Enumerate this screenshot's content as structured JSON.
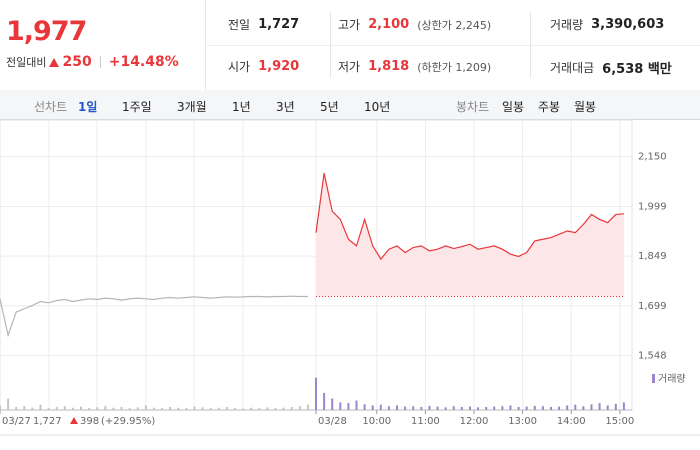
{
  "header": {
    "price": "1,977",
    "change_label": "전일대비",
    "change": "250",
    "change_pct": "+14.48%"
  },
  "summary": [
    {
      "label": "전일",
      "value": "1,727"
    },
    {
      "label": "고가",
      "value": "2,100",
      "note": "(상한가 2,245)"
    },
    {
      "label": "거래량",
      "value": "3,390,603"
    },
    {
      "label": "시가",
      "value": "1,920"
    },
    {
      "label": "저가",
      "value": "1,818",
      "note": "(하한가 1,209)"
    },
    {
      "label": "거래대금",
      "value": "6,538 백만"
    }
  ],
  "tabs": {
    "line_label": "선차트",
    "line": [
      "1일",
      "1주일",
      "3개월",
      "1년",
      "3년",
      "5년",
      "10년"
    ],
    "active": 0,
    "candle_label": "봉차트",
    "candle": [
      "일봉",
      "주봉",
      "월봉"
    ]
  },
  "chart_data": {
    "type": "line",
    "grid": true,
    "ylim": [
      1520,
      2200
    ],
    "yticks": [
      {
        "value": 2150,
        "label": "2,150"
      },
      {
        "value": 1999,
        "label": "1,999"
      },
      {
        "value": 1849,
        "label": "1,849"
      },
      {
        "value": 1699,
        "label": "1,699"
      },
      {
        "value": 1548,
        "label": "1,548"
      }
    ],
    "xlim": [
      0,
      78
    ],
    "xticks": [
      {
        "value": 0,
        "label": "03/27"
      },
      {
        "value": 39,
        "label": "03/28"
      },
      {
        "value": 46.5,
        "label": "10:00"
      },
      {
        "value": 52.5,
        "label": "11:00"
      },
      {
        "value": 58.5,
        "label": "12:00"
      },
      {
        "value": 64.5,
        "label": "13:00"
      },
      {
        "value": 70.5,
        "label": "14:00"
      },
      {
        "value": 76.5,
        "label": "15:00"
      }
    ],
    "reference": 1727,
    "series": [
      {
        "color": "#b5b5b5",
        "area": false,
        "volume_color": "#c4c4c4",
        "x": [
          0,
          1,
          2,
          3,
          4,
          5,
          6,
          7,
          8,
          9,
          10,
          11,
          12,
          13,
          14,
          15,
          16,
          17,
          18,
          19,
          20,
          21,
          22,
          23,
          24,
          25,
          26,
          27,
          28,
          29,
          30,
          31,
          32,
          33,
          34,
          35,
          36,
          37,
          38
        ],
        "values": [
          1720,
          1610,
          1680,
          1690,
          1700,
          1712,
          1708,
          1715,
          1718,
          1712,
          1716,
          1720,
          1718,
          1722,
          1720,
          1716,
          1720,
          1722,
          1720,
          1718,
          1722,
          1724,
          1722,
          1724,
          1726,
          1724,
          1722,
          1724,
          1726,
          1725,
          1726,
          1727,
          1727,
          1726,
          1727,
          1727,
          1728,
          1727,
          1727
        ],
        "volume": [
          12,
          30,
          8,
          10,
          6,
          14,
          5,
          8,
          10,
          6,
          9,
          5,
          7,
          11,
          6,
          8,
          5,
          7,
          12,
          6,
          5,
          8,
          6,
          5,
          9,
          7,
          5,
          6,
          8,
          5,
          4,
          6,
          5,
          7,
          5,
          6,
          8,
          10,
          14
        ]
      },
      {
        "color": "#e8373b",
        "area": true,
        "area_color": "#fde6e7",
        "volume_color": "#9a86cc",
        "x": [
          39,
          40,
          41,
          42,
          43,
          44,
          45,
          46,
          47,
          48,
          49,
          50,
          51,
          52,
          53,
          54,
          55,
          56,
          57,
          58,
          59,
          60,
          61,
          62,
          63,
          64,
          65,
          66,
          67,
          68,
          69,
          70,
          71,
          72,
          73,
          74,
          75,
          76,
          77
        ],
        "values": [
          1920,
          2100,
          1985,
          1960,
          1900,
          1880,
          1960,
          1880,
          1840,
          1870,
          1880,
          1860,
          1875,
          1880,
          1865,
          1870,
          1880,
          1872,
          1878,
          1885,
          1870,
          1875,
          1880,
          1870,
          1855,
          1848,
          1860,
          1895,
          1900,
          1905,
          1915,
          1925,
          1920,
          1945,
          1975,
          1960,
          1950,
          1975,
          1977
        ],
        "volume": [
          85,
          45,
          30,
          20,
          18,
          25,
          15,
          12,
          14,
          10,
          12,
          9,
          10,
          8,
          11,
          9,
          7,
          10,
          8,
          9,
          7,
          8,
          9,
          10,
          12,
          8,
          9,
          11,
          10,
          8,
          9,
          12,
          14,
          10,
          15,
          18,
          12,
          16,
          20
        ]
      }
    ],
    "volume_ylim": [
      0,
      100
    ],
    "volume_legend": "거래량",
    "volume_legend_color": "#9a86cc",
    "footer": {
      "date": "03/27",
      "price": "1,727",
      "change": "398",
      "change_pct": "(+29.95%)"
    }
  }
}
